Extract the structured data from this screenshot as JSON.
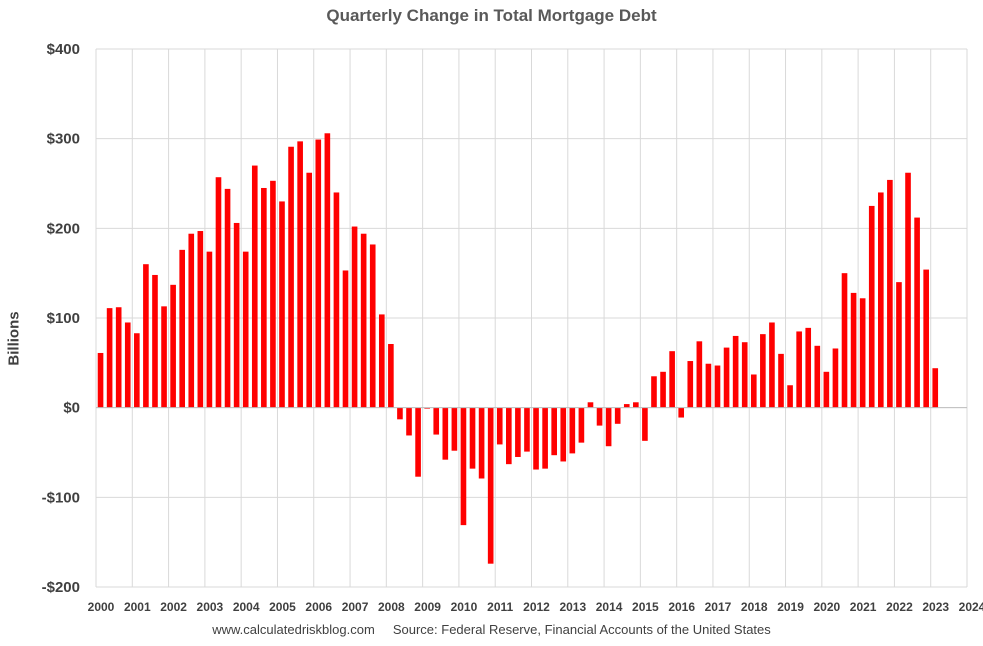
{
  "chart_data": {
    "type": "bar",
    "title": "Quarterly Change in Total Mortgage Debt",
    "ylabel": "Billions",
    "xlabel": "",
    "ylim": [
      -200,
      400
    ],
    "yticks": [
      400,
      300,
      200,
      100,
      0,
      -100,
      -200
    ],
    "ytick_labels": [
      "$400",
      "$300",
      "$200",
      "$100",
      "$0",
      "-$100",
      "-$200"
    ],
    "xticks": [
      "2000",
      "2001",
      "2002",
      "2003",
      "2004",
      "2005",
      "2006",
      "2007",
      "2008",
      "2009",
      "2010",
      "2011",
      "2012",
      "2013",
      "2014",
      "2015",
      "2016",
      "2017",
      "2018",
      "2019",
      "2020",
      "2021",
      "2022",
      "2023",
      "2024"
    ],
    "grid": true,
    "bar_color": "#ff0000",
    "series": [
      {
        "x": [
          "2000Q1",
          "2000Q2",
          "2000Q3",
          "2000Q4",
          "2001Q1",
          "2001Q2",
          "2001Q3",
          "2001Q4",
          "2002Q1",
          "2002Q2",
          "2002Q3",
          "2002Q4",
          "2003Q1",
          "2003Q2",
          "2003Q3",
          "2003Q4",
          "2004Q1",
          "2004Q2",
          "2004Q3",
          "2004Q4",
          "2005Q1",
          "2005Q2",
          "2005Q3",
          "2005Q4",
          "2006Q1",
          "2006Q2",
          "2006Q3",
          "2006Q4",
          "2007Q1",
          "2007Q2",
          "2007Q3",
          "2007Q4",
          "2008Q1",
          "2008Q2",
          "2008Q3",
          "2008Q4",
          "2009Q1",
          "2009Q2",
          "2009Q3",
          "2009Q4",
          "2010Q1",
          "2010Q2",
          "2010Q3",
          "2010Q4",
          "2011Q1",
          "2011Q2",
          "2011Q3",
          "2011Q4",
          "2012Q1",
          "2012Q2",
          "2012Q3",
          "2012Q4",
          "2013Q1",
          "2013Q2",
          "2013Q3",
          "2013Q4",
          "2014Q1",
          "2014Q2",
          "2014Q3",
          "2014Q4",
          "2015Q1",
          "2015Q2",
          "2015Q3",
          "2015Q4",
          "2016Q1",
          "2016Q2",
          "2016Q3",
          "2016Q4",
          "2017Q1",
          "2017Q2",
          "2017Q3",
          "2017Q4",
          "2018Q1",
          "2018Q2",
          "2018Q3",
          "2018Q4",
          "2019Q1",
          "2019Q2",
          "2019Q3",
          "2019Q4",
          "2020Q1",
          "2020Q2",
          "2020Q3",
          "2020Q4",
          "2021Q1",
          "2021Q2",
          "2021Q3",
          "2021Q4",
          "2022Q1",
          "2022Q2",
          "2022Q3",
          "2022Q4",
          "2023Q1"
        ],
        "values": [
          61,
          111,
          112,
          95,
          83,
          160,
          148,
          113,
          137,
          176,
          194,
          197,
          174,
          257,
          244,
          206,
          174,
          270,
          245,
          253,
          230,
          291,
          297,
          262,
          299,
          306,
          240,
          153,
          202,
          194,
          182,
          104,
          71,
          -13,
          -31,
          -77,
          -1,
          -30,
          -58,
          -48,
          -131,
          -68,
          -79,
          -174,
          -41,
          -63,
          -55,
          -49,
          -69,
          -68,
          -53,
          -60,
          -51,
          -39,
          6,
          -20,
          -43,
          -18,
          4,
          6,
          -37,
          35,
          40,
          63,
          -11,
          52,
          74,
          49,
          47,
          67,
          80,
          73,
          37,
          82,
          95,
          60,
          25,
          85,
          89,
          69,
          40,
          66,
          150,
          128,
          122,
          225,
          240,
          254,
          140,
          262,
          212,
          154,
          44
        ]
      }
    ]
  },
  "source_text": "www.calculatedriskblog.com     Source: Federal Reserve, Financial Accounts of the United States"
}
